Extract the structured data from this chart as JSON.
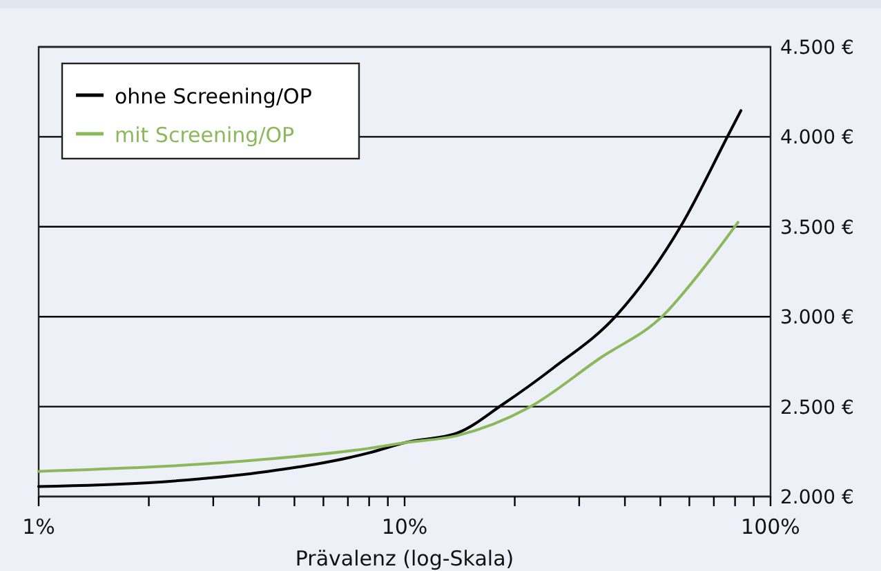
{
  "chart_data": {
    "type": "line",
    "xlabel": "Prävalenz (log-Skala)",
    "log": "x",
    "xlim": [
      1,
      100
    ],
    "xticks": [
      {
        "value": 1,
        "label": "1%"
      },
      {
        "value": 2,
        "label": null
      },
      {
        "value": 3,
        "label": null
      },
      {
        "value": 4,
        "label": null
      },
      {
        "value": 5,
        "label": null
      },
      {
        "value": 6,
        "label": null
      },
      {
        "value": 7,
        "label": null
      },
      {
        "value": 8,
        "label": null
      },
      {
        "value": 9,
        "label": null
      },
      {
        "value": 10,
        "label": "10%"
      },
      {
        "value": 20,
        "label": null
      },
      {
        "value": 30,
        "label": null
      },
      {
        "value": 40,
        "label": null
      },
      {
        "value": 50,
        "label": null
      },
      {
        "value": 60,
        "label": null
      },
      {
        "value": 70,
        "label": null
      },
      {
        "value": 80,
        "label": null
      },
      {
        "value": 90,
        "label": null
      },
      {
        "value": 100,
        "label": "100%"
      }
    ],
    "ylim": [
      2000,
      4500
    ],
    "yticks": [
      {
        "value": 2000,
        "label": "2.000 €"
      },
      {
        "value": 2500,
        "label": "2.500 €"
      },
      {
        "value": 3000,
        "label": "3.000 €"
      },
      {
        "value": 3500,
        "label": "3.500 €"
      },
      {
        "value": 4000,
        "label": "4.000 €"
      },
      {
        "value": 4500,
        "label": "4.500 €"
      }
    ],
    "grid": "y",
    "legend": "top left",
    "line_style": "solid",
    "series": [
      {
        "name": "ohne Screening/OP",
        "color": "#000000",
        "x": [
          1,
          2,
          4,
          8,
          10,
          14,
          18.5,
          25.5,
          38,
          57,
          77,
          83
        ],
        "values": [
          2056,
          2077,
          2133,
          2243,
          2299,
          2355,
          2511,
          2715,
          3009,
          3507,
          4018,
          4146
        ]
      },
      {
        "name": "mit Screening/OP",
        "color": "#8cb85c",
        "x": [
          1,
          4,
          8,
          10,
          14,
          22,
          34,
          51,
          64.5,
          81.5
        ],
        "values": [
          2140,
          2204,
          2268,
          2299,
          2340,
          2498,
          2766,
          3009,
          3251,
          3525
        ]
      }
    ]
  }
}
